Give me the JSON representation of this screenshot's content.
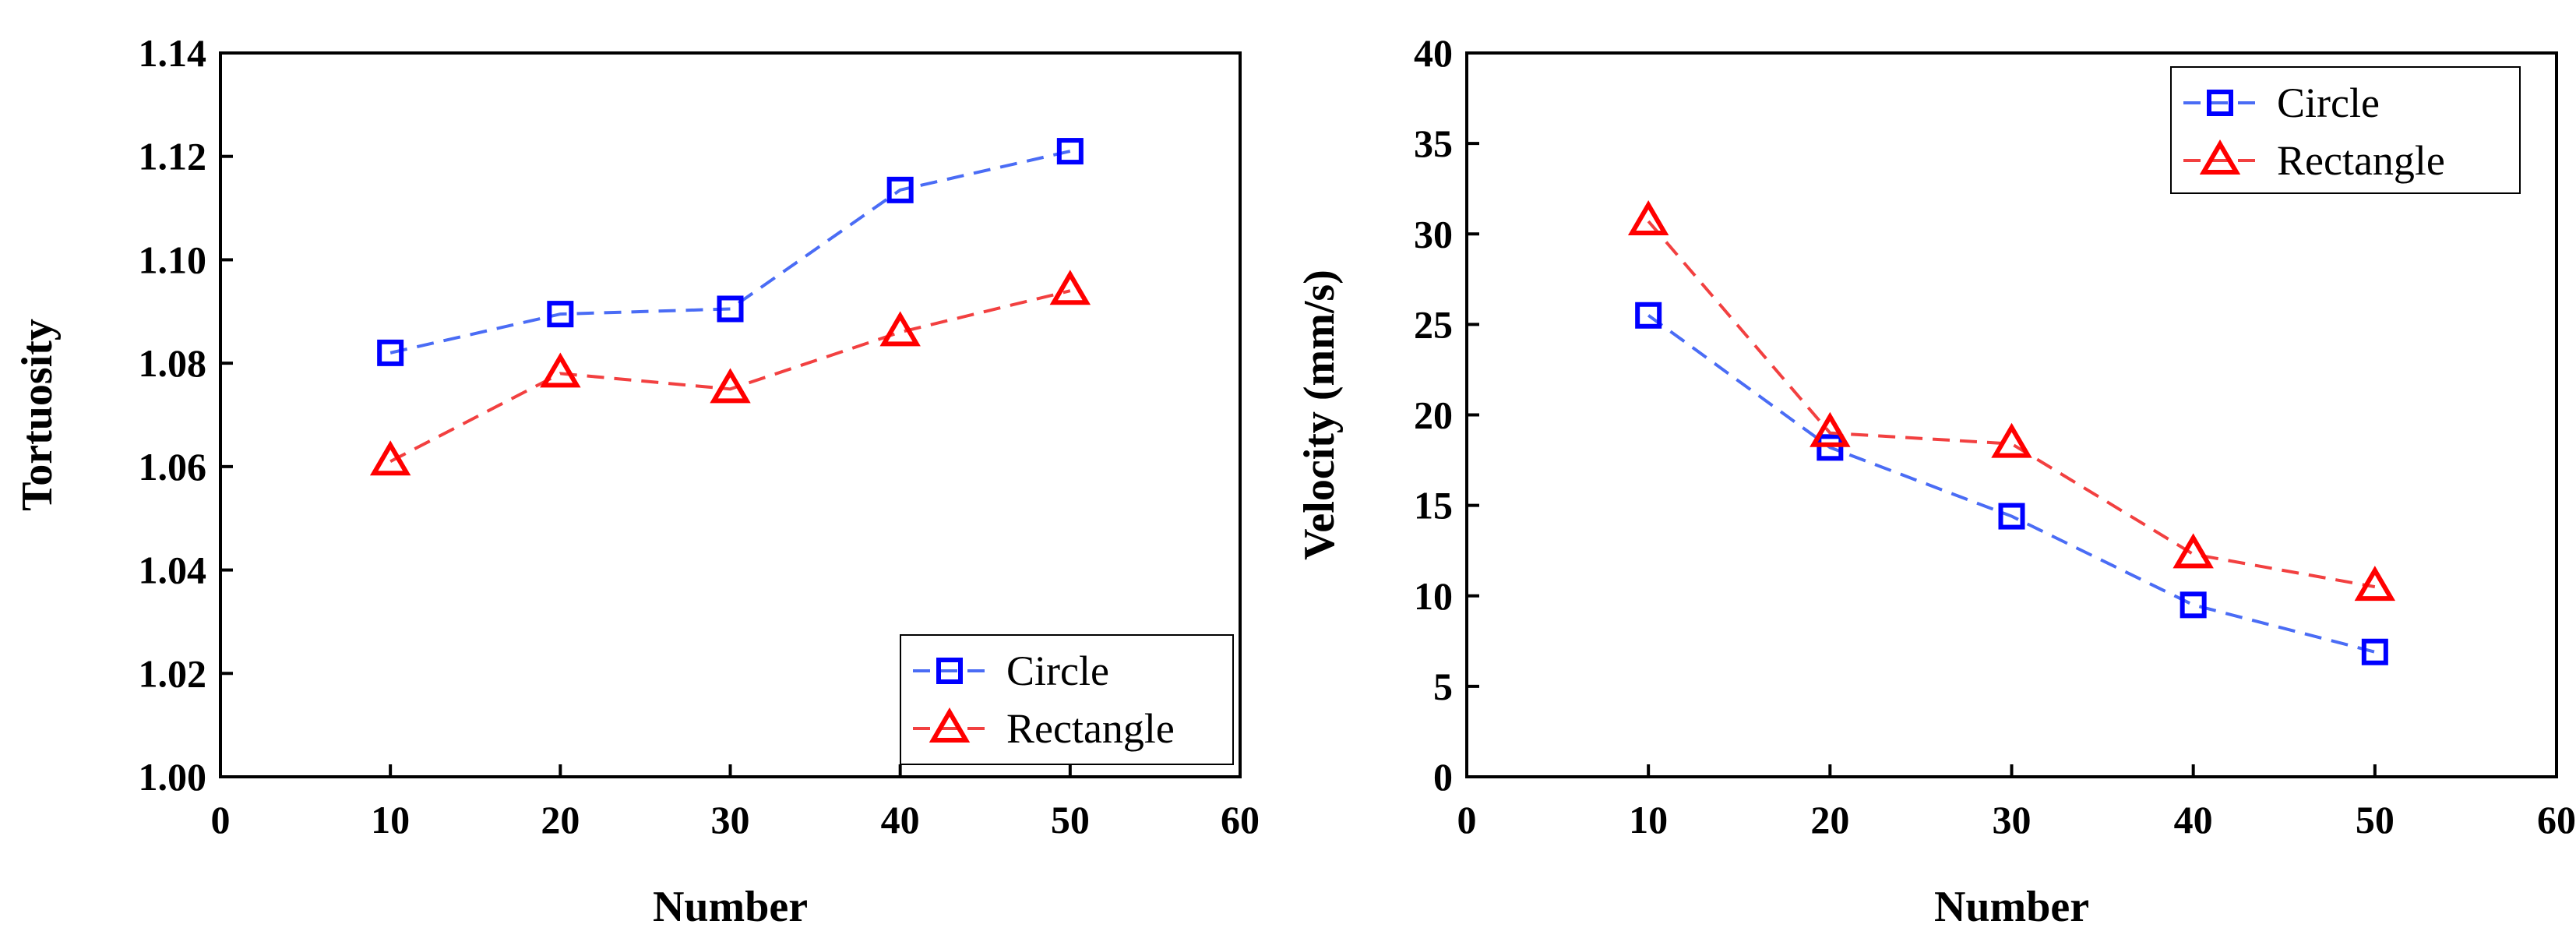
{
  "chart_data": [
    {
      "type": "line",
      "title": "",
      "xlabel": "Number",
      "ylabel": "Tortuosity",
      "xlim": [
        0,
        60
      ],
      "ylim": [
        1.0,
        1.14
      ],
      "xticks": [
        "0",
        "10",
        "20",
        "30",
        "40",
        "50",
        "60"
      ],
      "yticks": [
        "1.00",
        "1.02",
        "1.04",
        "1.06",
        "1.08",
        "1.10",
        "1.12",
        "1.14"
      ],
      "x": [
        10,
        20,
        30,
        40,
        50
      ],
      "legend_position": "bottom-right",
      "series": [
        {
          "name": "Circle",
          "marker": "square",
          "color": "#0000ff",
          "line_color": "#4a6cf5",
          "values": [
            1.082,
            1.0895,
            1.0905,
            1.1135,
            1.121
          ]
        },
        {
          "name": "Rectangle",
          "marker": "triangle",
          "color": "#ff0000",
          "line_color": "#f24040",
          "values": [
            1.061,
            1.078,
            1.075,
            1.086,
            1.094
          ]
        }
      ]
    },
    {
      "type": "line",
      "title": "",
      "xlabel": "Number",
      "ylabel": "Velocity (mm/s)",
      "xlim": [
        0,
        60
      ],
      "ylim": [
        0,
        40
      ],
      "xticks": [
        "0",
        "10",
        "20",
        "30",
        "40",
        "50",
        "60"
      ],
      "yticks": [
        "0",
        "5",
        "10",
        "15",
        "20",
        "25",
        "30",
        "35",
        "40"
      ],
      "x": [
        10,
        20,
        30,
        40,
        50
      ],
      "legend_position": "top-right",
      "series": [
        {
          "name": "Circle",
          "marker": "square",
          "color": "#0000ff",
          "line_color": "#4a6cf5",
          "values": [
            25.5,
            18.2,
            14.4,
            9.5,
            6.9
          ]
        },
        {
          "name": "Rectangle",
          "marker": "triangle",
          "color": "#ff0000",
          "line_color": "#f24040",
          "values": [
            30.7,
            19.0,
            18.4,
            12.3,
            10.5
          ]
        }
      ]
    }
  ]
}
